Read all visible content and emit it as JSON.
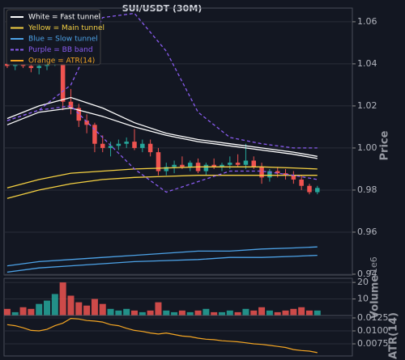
{
  "chart_data": [
    {
      "type": "candlestick",
      "title": "SUI/USDT (30M)",
      "y_label": "Price",
      "grid": true,
      "up_color": "#26a69a",
      "down_color": "#ef5350",
      "xlim": [
        -0.4,
        43.4
      ],
      "ylim": [
        0.9396,
        1.0665
      ],
      "yticks": [
        0.94,
        0.96,
        0.98,
        {
          "value": 1,
          "label": "1.00"
        },
        1.02,
        1.04,
        1.06
      ],
      "x": [
        0,
        1,
        2,
        3,
        4,
        5,
        6,
        7,
        8,
        9,
        10,
        11,
        12,
        13,
        14,
        15,
        16,
        17,
        18,
        19,
        20,
        21,
        22,
        23,
        24,
        25,
        26,
        27,
        28,
        29,
        30,
        31,
        32,
        33,
        34,
        35,
        36,
        37,
        38,
        39
      ],
      "open": [
        1.04,
        1.039,
        1.04,
        1.039,
        1.038,
        1.039,
        1.041,
        1.043,
        1.022,
        1.019,
        1.013,
        1.011,
        1.002,
        1.0,
        1.001,
        1.002,
        1.003,
        1.0,
        1.002,
        0.998,
        0.989,
        0.991,
        0.992,
        0.991,
        0.993,
        0.989,
        0.992,
        0.991,
        0.992,
        0.993,
        0.992,
        0.994,
        0.991,
        0.986,
        0.989,
        0.988,
        0.987,
        0.985,
        0.982,
        0.979
      ],
      "high": [
        1.042,
        1.041,
        1.043,
        1.041,
        1.04,
        1.044,
        1.046,
        1.044,
        1.028,
        1.021,
        1.016,
        1.012,
        1.006,
        1.003,
        1.004,
        1.005,
        1.009,
        1.004,
        1.004,
        1.0,
        0.993,
        0.994,
        0.996,
        0.994,
        0.995,
        0.993,
        0.995,
        0.993,
        0.996,
        0.997,
        1.002,
        0.996,
        0.993,
        0.99,
        0.991,
        0.99,
        0.989,
        0.987,
        0.983,
        0.982
      ],
      "low": [
        1.038,
        1.037,
        1.038,
        1.036,
        1.035,
        1.037,
        1.039,
        1.018,
        1.016,
        1.01,
        1.007,
        0.998,
        0.998,
        0.996,
        0.999,
        1.0,
        0.999,
        0.998,
        0.996,
        0.987,
        0.987,
        0.988,
        0.99,
        0.989,
        0.988,
        0.987,
        0.99,
        0.989,
        0.99,
        0.991,
        0.99,
        0.99,
        0.983,
        0.984,
        0.986,
        0.985,
        0.983,
        0.98,
        0.978,
        0.978
      ],
      "close": [
        1.039,
        1.04,
        1.039,
        1.038,
        1.039,
        1.041,
        1.043,
        1.022,
        1.019,
        1.013,
        1.011,
        1.002,
        1.0,
        1.001,
        1.002,
        1.003,
        1.0,
        1.002,
        0.998,
        0.989,
        0.991,
        0.992,
        0.991,
        0.993,
        0.989,
        0.992,
        0.991,
        0.992,
        0.993,
        0.992,
        0.994,
        0.991,
        0.986,
        0.989,
        0.988,
        0.987,
        0.985,
        0.982,
        0.979,
        0.981
      ],
      "series": [
        {
          "name": "White = Fast tunnel",
          "color": "#ffffff",
          "x": [
            0,
            4,
            8,
            12,
            16,
            20,
            24,
            28,
            32,
            36,
            39
          ],
          "upper": [
            1.014,
            1.02,
            1.024,
            1.019,
            1.012,
            1.007,
            1.004,
            1.002,
            1.0,
            0.998,
            0.996
          ],
          "lower": [
            1.011,
            1.017,
            1.019,
            1.015,
            1.01,
            1.006,
            1.003,
            1.001,
            0.999,
            0.997,
            0.995
          ]
        },
        {
          "name": "Yellow = Main tunnel",
          "color": "#f5d142",
          "x": [
            0,
            4,
            8,
            12,
            16,
            20,
            24,
            28,
            32,
            36,
            39
          ],
          "upper": [
            0.981,
            0.985,
            0.988,
            0.989,
            0.99,
            0.9905,
            0.991,
            0.991,
            0.991,
            0.9905,
            0.99
          ],
          "lower": [
            0.976,
            0.98,
            0.983,
            0.985,
            0.986,
            0.9865,
            0.987,
            0.987,
            0.987,
            0.987,
            0.987
          ]
        },
        {
          "name": "Blue = Slow tunnel",
          "color": "#4da3e8",
          "x": [
            0,
            4,
            8,
            12,
            16,
            20,
            24,
            28,
            32,
            36,
            39
          ],
          "upper": [
            0.944,
            0.946,
            0.947,
            0.948,
            0.949,
            0.95,
            0.951,
            0.951,
            0.952,
            0.9525,
            0.953
          ],
          "lower": [
            0.941,
            0.943,
            0.944,
            0.945,
            0.946,
            0.9465,
            0.947,
            0.948,
            0.948,
            0.9485,
            0.949
          ]
        },
        {
          "name": "Purple = BB band",
          "color": "#8a5cf0",
          "dashed": true,
          "x": [
            0,
            4,
            8,
            12,
            16,
            20,
            24,
            28,
            32,
            36,
            39
          ],
          "upper": [
            1.013,
            1.018,
            1.03,
            1.062,
            1.064,
            1.046,
            1.017,
            1.005,
            1.002,
            1.0,
            1.0
          ],
          "lower": [
            1.013,
            1.018,
            1.02,
            1.005,
            0.99,
            0.979,
            0.984,
            0.989,
            0.989,
            0.987,
            0.985
          ]
        },
        {
          "name": "Orange = ATR(14)",
          "color": "#f5a623"
        }
      ]
    },
    {
      "type": "bar",
      "y_label": "Volume",
      "offset_label": "1e6",
      "grid": true,
      "xlim": [
        -0.4,
        43.4
      ],
      "ylim": [
        0,
        22.5
      ],
      "yticks": [
        10,
        20
      ],
      "x": [
        0,
        1,
        2,
        3,
        4,
        5,
        6,
        7,
        8,
        9,
        10,
        11,
        12,
        13,
        14,
        15,
        16,
        17,
        18,
        19,
        20,
        21,
        22,
        23,
        24,
        25,
        26,
        27,
        28,
        29,
        30,
        31,
        32,
        33,
        34,
        35,
        36,
        37,
        38,
        39
      ],
      "values": [
        4,
        2,
        5,
        4,
        7,
        9,
        13,
        20,
        12,
        8,
        6,
        10,
        7,
        4,
        3,
        4,
        3,
        2,
        3,
        8,
        3,
        2,
        3,
        2,
        3,
        4,
        2,
        2,
        3,
        2,
        4,
        3,
        5,
        3,
        2,
        3,
        4,
        5,
        3,
        3
      ]
    },
    {
      "type": "line",
      "y_label": "ATR(14)",
      "color": "#f5a623",
      "grid": true,
      "xlim": [
        -0.4,
        43.4
      ],
      "ylim": [
        0.00516,
        0.01297
      ],
      "yticks": [
        0.0075,
        {
          "value": 0.01,
          "label": "0.0100"
        },
        0.0125
      ],
      "x": [
        0,
        1,
        2,
        3,
        4,
        5,
        6,
        7,
        8,
        9,
        10,
        11,
        12,
        13,
        14,
        15,
        16,
        17,
        18,
        19,
        20,
        21,
        22,
        23,
        24,
        25,
        26,
        27,
        28,
        29,
        30,
        31,
        32,
        33,
        34,
        35,
        36,
        37,
        38,
        39
      ],
      "values": [
        0.0112,
        0.011,
        0.0106,
        0.0101,
        0.01,
        0.0103,
        0.011,
        0.0115,
        0.0124,
        0.0123,
        0.012,
        0.0119,
        0.0117,
        0.0112,
        0.011,
        0.0105,
        0.0101,
        0.0099,
        0.0096,
        0.0094,
        0.0096,
        0.0093,
        0.009,
        0.0089,
        0.0086,
        0.0084,
        0.0083,
        0.0081,
        0.008,
        0.0079,
        0.0077,
        0.0075,
        0.0074,
        0.0072,
        0.007,
        0.0068,
        0.0064,
        0.0062,
        0.0061,
        0.0058
      ]
    }
  ]
}
